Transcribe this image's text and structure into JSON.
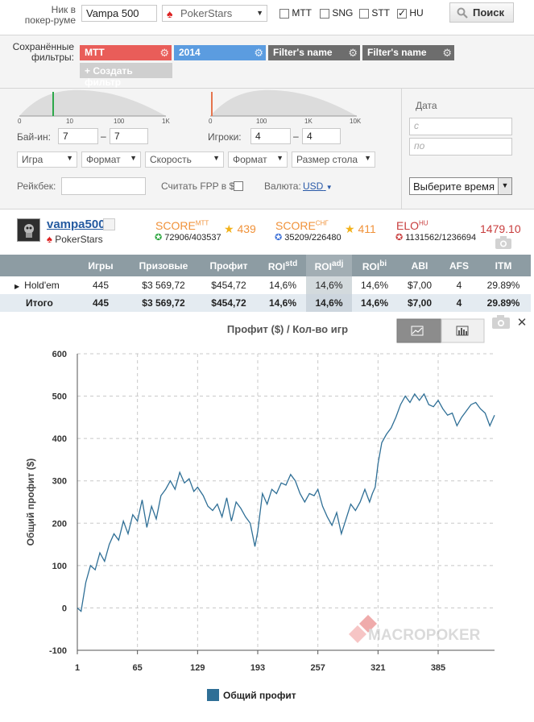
{
  "search": {
    "nick_label_1": "Ник в",
    "nick_label_2": "покер-руме",
    "nick_value": "Vampa 500",
    "room_value": "PokerStars",
    "types": [
      {
        "label": "MTT",
        "checked": false
      },
      {
        "label": "SNG",
        "checked": false
      },
      {
        "label": "STT",
        "checked": false
      },
      {
        "label": "HU",
        "checked": true
      }
    ],
    "search_label": "Поиск"
  },
  "filters": {
    "label_1": "Сохранённые",
    "label_2": "фильтры:",
    "tags": [
      {
        "label": "MTT",
        "color": "#e95d59"
      },
      {
        "label": "2014",
        "color": "#5b9ce0"
      },
      {
        "label": "Filter's name",
        "color": "#6d6d6d"
      },
      {
        "label": "Filter's name",
        "color": "#6d6d6d"
      }
    ],
    "create_label": "+ Создать фильтр"
  },
  "ranges": {
    "buyin_ticks": [
      "0",
      "10",
      "100",
      "1K"
    ],
    "players_ticks": [
      "0",
      "100",
      "1K",
      "10K"
    ],
    "buyin_label": "Бай-ин:",
    "buyin_from": "7",
    "buyin_to": "7",
    "players_label": "Игроки:",
    "players_from": "4",
    "players_to": "4",
    "dash": "–",
    "date_label": "Дата",
    "date_from_placeholder": "с",
    "date_to_placeholder": "по",
    "selects": [
      "Игра",
      "Формат",
      "Скорость",
      "Формат",
      "Размер стола"
    ],
    "rakeback_label": "Рейкбек:",
    "fpp_label": "Считать FPP в $",
    "currency_label": "Валюта:",
    "currency_value": "USD",
    "time_select": "Выберите время"
  },
  "player": {
    "name": "vampa500",
    "room": "PokerStars",
    "score_mtt_label": "SCORE",
    "score_mtt_sup": "MTT",
    "score_mtt_rank": "72906/403537",
    "score_mtt_value": "439",
    "score_sng_label": "SCORE",
    "score_sng_sup": "СНГ",
    "score_sng_rank": "35209/226480",
    "score_sng_value": "411",
    "elo_label": "ELO",
    "elo_sup": "HU",
    "elo_rank": "1131562/1236694",
    "elo_value": "1479.10"
  },
  "table": {
    "headers": [
      "",
      "Игры",
      "Призовые",
      "Профит",
      "ROI",
      "ROI",
      "ROI",
      "ABI",
      "AFS",
      "ITM"
    ],
    "roi_sups": [
      "std",
      "adj",
      "bi"
    ],
    "rows": [
      [
        "Hold'em",
        "445",
        "$3 569,72",
        "$454,72",
        "14,6%",
        "14,6%",
        "14,6%",
        "$7,00",
        "4",
        "29.89%"
      ],
      [
        "Итого",
        "445",
        "$3 569,72",
        "$454,72",
        "14,6%",
        "14,6%",
        "14,6%",
        "$7,00",
        "4",
        "29.89%"
      ]
    ]
  },
  "chart_ui": {
    "close_icon": "close-icon",
    "camera_icon": "camera-icon",
    "watermark": "MACROPOKER"
  },
  "chart_data": {
    "type": "line",
    "title": "Профит ($) / Кол-во игр",
    "ylabel": "Общий профит ($)",
    "xlabel": "",
    "xlim": [
      1,
      445
    ],
    "ylim": [
      -100,
      600
    ],
    "x_ticks": [
      1,
      65,
      129,
      193,
      257,
      321,
      385
    ],
    "y_ticks": [
      600,
      500,
      400,
      300,
      200,
      100,
      0,
      -100
    ],
    "grid": true,
    "legend": "bottom-center",
    "series": [
      {
        "name": "Общий профит",
        "color": "#2f6f96",
        "points": [
          [
            1,
            0
          ],
          [
            5,
            -8
          ],
          [
            10,
            60
          ],
          [
            15,
            100
          ],
          [
            20,
            90
          ],
          [
            25,
            130
          ],
          [
            30,
            110
          ],
          [
            35,
            150
          ],
          [
            40,
            175
          ],
          [
            45,
            160
          ],
          [
            50,
            205
          ],
          [
            55,
            175
          ],
          [
            60,
            220
          ],
          [
            65,
            205
          ],
          [
            70,
            255
          ],
          [
            75,
            190
          ],
          [
            80,
            240
          ],
          [
            85,
            210
          ],
          [
            90,
            265
          ],
          [
            95,
            280
          ],
          [
            100,
            300
          ],
          [
            105,
            280
          ],
          [
            110,
            320
          ],
          [
            115,
            295
          ],
          [
            120,
            305
          ],
          [
            125,
            275
          ],
          [
            129,
            285
          ],
          [
            135,
            265
          ],
          [
            140,
            240
          ],
          [
            145,
            230
          ],
          [
            150,
            245
          ],
          [
            155,
            215
          ],
          [
            160,
            260
          ],
          [
            165,
            205
          ],
          [
            170,
            250
          ],
          [
            175,
            235
          ],
          [
            180,
            215
          ],
          [
            185,
            200
          ],
          [
            190,
            145
          ],
          [
            193,
            180
          ],
          [
            198,
            270
          ],
          [
            203,
            245
          ],
          [
            208,
            280
          ],
          [
            213,
            270
          ],
          [
            218,
            295
          ],
          [
            223,
            290
          ],
          [
            228,
            315
          ],
          [
            233,
            300
          ],
          [
            238,
            270
          ],
          [
            243,
            250
          ],
          [
            248,
            270
          ],
          [
            253,
            265
          ],
          [
            257,
            280
          ],
          [
            262,
            240
          ],
          [
            267,
            215
          ],
          [
            272,
            195
          ],
          [
            277,
            225
          ],
          [
            282,
            175
          ],
          [
            287,
            210
          ],
          [
            292,
            245
          ],
          [
            297,
            230
          ],
          [
            302,
            250
          ],
          [
            307,
            280
          ],
          [
            312,
            250
          ],
          [
            315,
            270
          ],
          [
            318,
            285
          ],
          [
            321,
            340
          ],
          [
            325,
            390
          ],
          [
            330,
            410
          ],
          [
            335,
            425
          ],
          [
            340,
            450
          ],
          [
            345,
            480
          ],
          [
            350,
            500
          ],
          [
            355,
            485
          ],
          [
            360,
            505
          ],
          [
            365,
            490
          ],
          [
            370,
            505
          ],
          [
            375,
            480
          ],
          [
            380,
            475
          ],
          [
            385,
            490
          ],
          [
            390,
            470
          ],
          [
            395,
            455
          ],
          [
            400,
            460
          ],
          [
            405,
            430
          ],
          [
            410,
            450
          ],
          [
            415,
            465
          ],
          [
            420,
            480
          ],
          [
            425,
            485
          ],
          [
            430,
            470
          ],
          [
            435,
            460
          ],
          [
            440,
            430
          ],
          [
            445,
            455
          ]
        ]
      }
    ]
  }
}
